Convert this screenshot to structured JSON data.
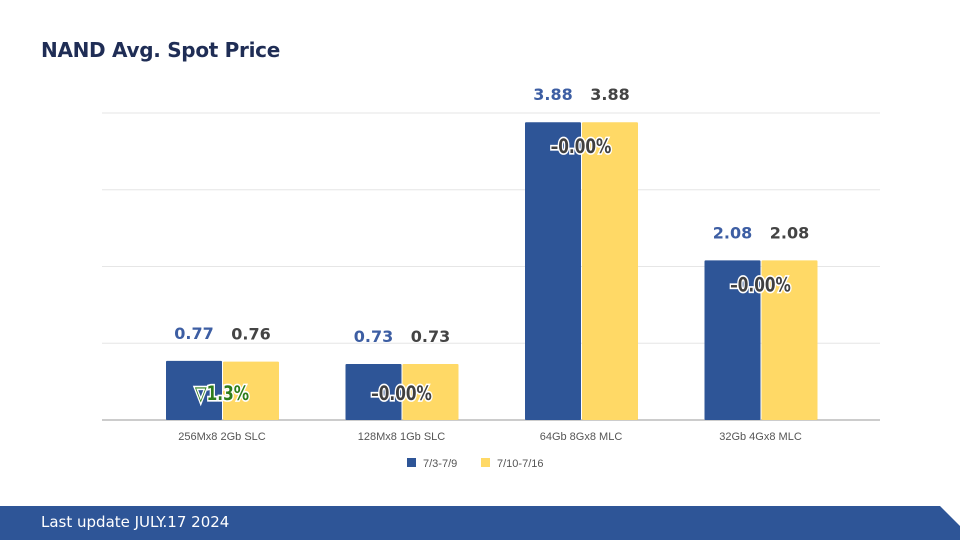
{
  "title": "NAND Avg. Spot Price",
  "footer": "Last update JULY.17 2024",
  "chart_data": {
    "type": "bar",
    "categories": [
      "256Mx8 2Gb SLC",
      "128Mx8 1Gb SLC",
      "64Gb 8Gx8 MLC",
      "32Gb 4Gx8 MLC"
    ],
    "series": [
      {
        "name": "7/3-7/9",
        "values": [
          0.77,
          0.73,
          3.88,
          2.08
        ],
        "color": "#2e5597",
        "label_color": "#3d5ea3"
      },
      {
        "name": "7/10-7/16",
        "values": [
          0.76,
          0.73,
          3.88,
          2.08
        ],
        "color": "#ffd966",
        "label_color": "#444444"
      }
    ],
    "annotations": [
      {
        "text": "▽1.3%",
        "color": "#2e7d1a"
      },
      {
        "text": "–0.00%",
        "color": "#404040"
      },
      {
        "text": "–0.00%",
        "color": "#404040"
      },
      {
        "text": "–0.00%",
        "color": "#404040"
      }
    ],
    "ylim": [
      0,
      4
    ],
    "grid": true,
    "legend": "bottom"
  }
}
